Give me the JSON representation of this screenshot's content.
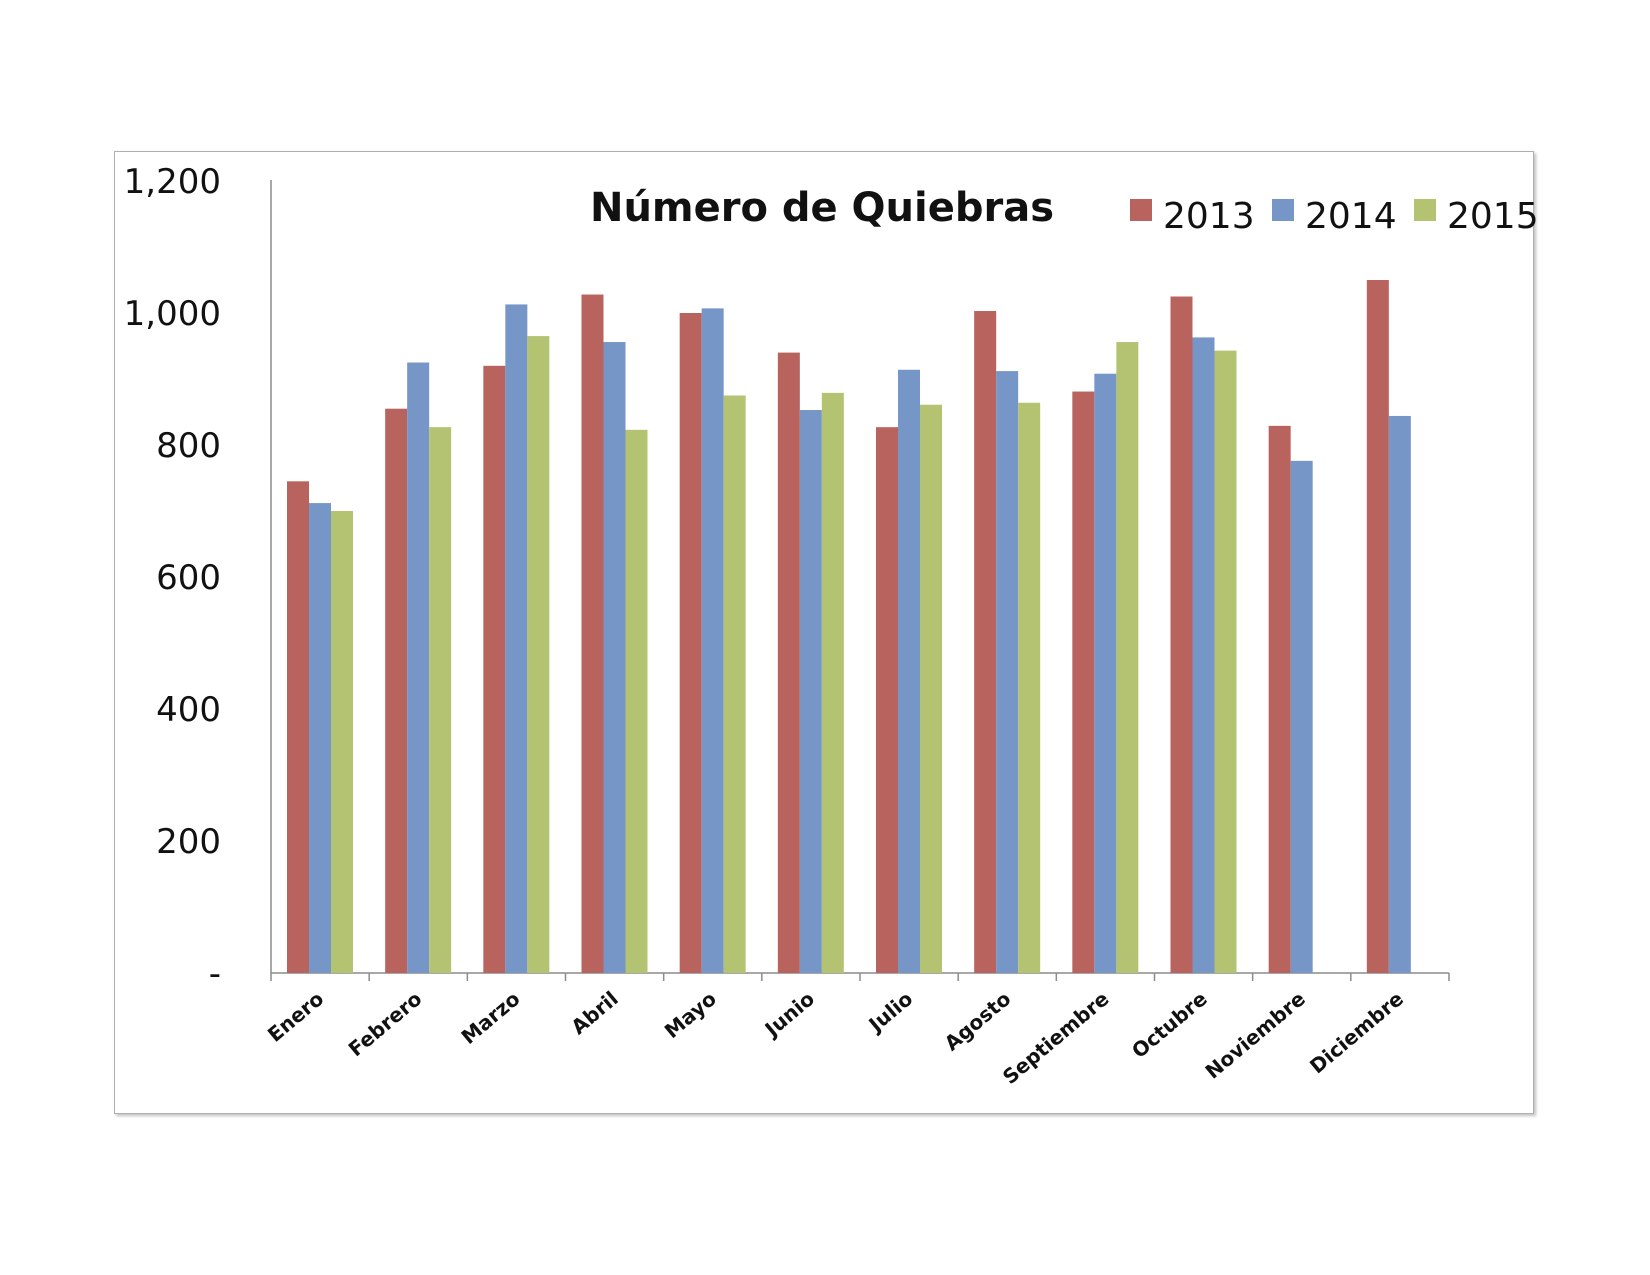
{
  "chart_data": {
    "type": "bar",
    "title": "Número de Quiebras",
    "categories": [
      "Enero",
      "Febrero",
      "Marzo",
      "Abril",
      "Mayo",
      "Junio",
      "Julio",
      "Agosto",
      "Septiembre",
      "Octubre",
      "Noviembre",
      "Diciembre"
    ],
    "series": [
      {
        "name": "2013",
        "color": "#b9635e",
        "values": [
          745,
          855,
          920,
          1028,
          1000,
          940,
          827,
          1003,
          881,
          1025,
          829,
          1050
        ]
      },
      {
        "name": "2014",
        "color": "#7596c6",
        "values": [
          712,
          925,
          1013,
          956,
          1007,
          853,
          914,
          912,
          908,
          963,
          776,
          844
        ]
      },
      {
        "name": "2015",
        "color": "#b3c372",
        "values": [
          700,
          827,
          965,
          823,
          875,
          879,
          861,
          864,
          956,
          943,
          null,
          null
        ]
      }
    ],
    "yticks": [
      0,
      200,
      400,
      600,
      800,
      1000,
      1200
    ],
    "ytick_labels": [
      "-",
      "200",
      "400",
      "600",
      "800",
      "1,000",
      "1,200"
    ],
    "ylim": [
      0,
      1200
    ],
    "legend_position": "top-right",
    "grid": false
  }
}
